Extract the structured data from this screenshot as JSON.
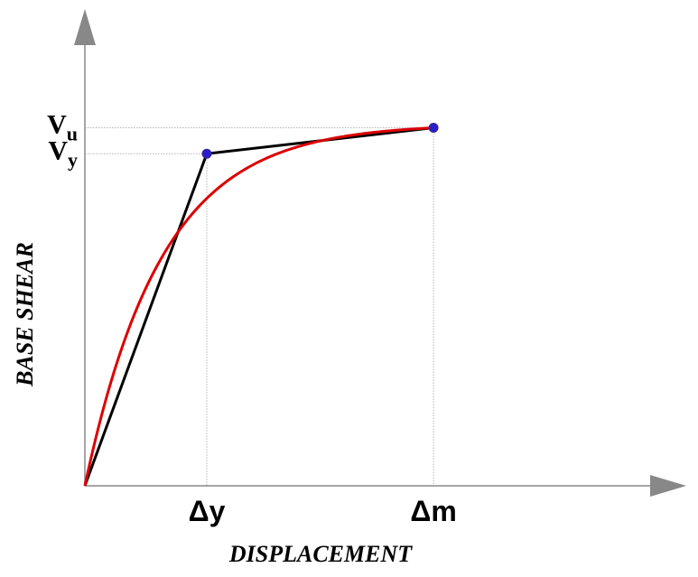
{
  "chart_data": {
    "type": "line",
    "title": "",
    "xlabel": "DISPLACEMENT",
    "ylabel": "BASE SHEAR",
    "x_ticks": [
      {
        "label": "Δy",
        "x": 1
      },
      {
        "label": "Δm",
        "x": 2.86
      }
    ],
    "y_ticks": [
      {
        "main": "V",
        "sub": "y",
        "y": 0.908
      },
      {
        "main": "V",
        "sub": "u",
        "y": 0.979
      }
    ],
    "xlim": [
      0,
      4.7
    ],
    "ylim": [
      0,
      1.29
    ],
    "grid": false,
    "legend": "none",
    "colors": {
      "bilinear": "#000000",
      "capacity": "#dd0000",
      "points": "#2a1ecc",
      "axis": "#888888",
      "guides": "#b4b4b4"
    },
    "series": [
      {
        "style": "bilinear",
        "points": [
          [
            0,
            0
          ],
          [
            1,
            0.908
          ],
          [
            2.86,
            0.979
          ]
        ]
      },
      {
        "style": "capacity",
        "curve": "1 - exp(-k x)",
        "k": 1.58,
        "x_end": 2.86,
        "y_end": 0.979
      }
    ],
    "markers": [
      [
        1,
        0.908
      ],
      [
        2.86,
        0.979
      ]
    ]
  }
}
